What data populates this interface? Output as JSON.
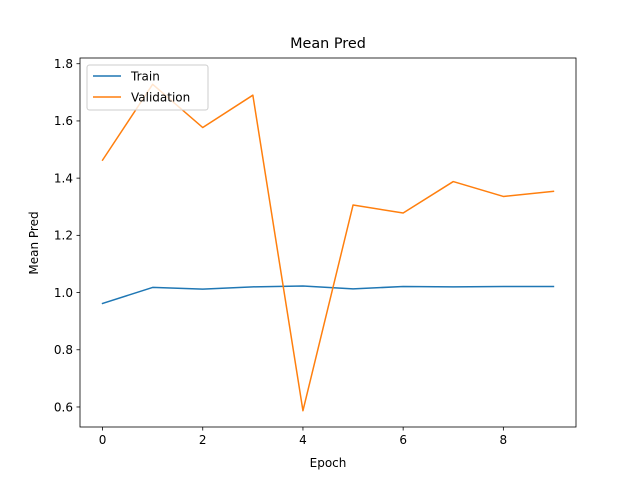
{
  "chart_data": {
    "type": "line",
    "title": "Mean Pred",
    "xlabel": "Epoch",
    "ylabel": "Mean Pred",
    "x": [
      0,
      1,
      2,
      3,
      4,
      5,
      6,
      7,
      8,
      9
    ],
    "xlim": [
      -0.45,
      9.45
    ],
    "ylim": [
      0.53,
      1.82
    ],
    "xticks": [
      0,
      2,
      4,
      6,
      8
    ],
    "yticks": [
      0.6,
      0.8,
      1.0,
      1.2,
      1.4,
      1.6,
      1.8
    ],
    "xtick_labels": [
      "0",
      "2",
      "4",
      "6",
      "8"
    ],
    "ytick_labels": [
      "0.6",
      "0.8",
      "1.0",
      "1.2",
      "1.4",
      "1.6",
      "1.8"
    ],
    "grid": false,
    "legend_position": "top-left",
    "series": [
      {
        "name": "Train",
        "color": "#1f77b4",
        "values": [
          0.962,
          1.018,
          1.012,
          1.02,
          1.023,
          1.013,
          1.021,
          1.02,
          1.021,
          1.021
        ]
      },
      {
        "name": "Validation",
        "color": "#ff7f0e",
        "values": [
          1.463,
          1.728,
          1.577,
          1.69,
          0.587,
          1.306,
          1.278,
          1.388,
          1.336,
          1.354
        ]
      }
    ]
  }
}
